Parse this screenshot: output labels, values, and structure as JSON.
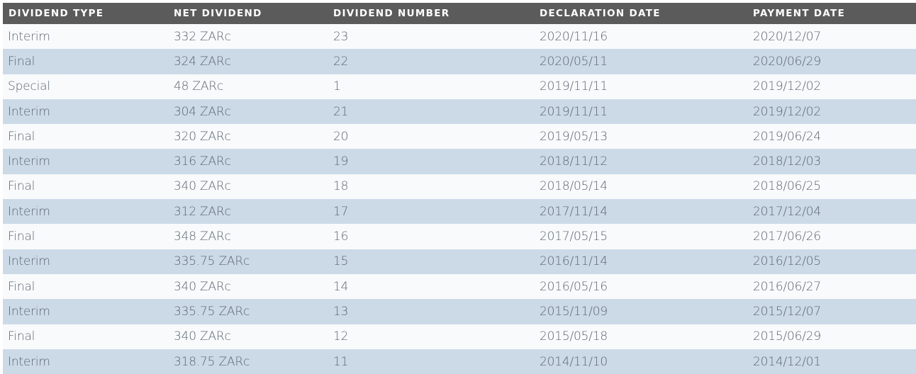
{
  "table": {
    "headers": [
      "DIVIDEND TYPE",
      "NET DIVIDEND",
      "DIVIDEND NUMBER",
      "DECLARATION DATE",
      "PAYMENT DATE"
    ],
    "rows": [
      [
        "Interim",
        "332 ZARc",
        "23",
        "2020/11/16",
        "2020/12/07"
      ],
      [
        "Final",
        "324 ZARc",
        "22",
        "2020/05/11",
        "2020/06/29"
      ],
      [
        "Special",
        "48 ZARc",
        "1",
        "2019/11/11",
        "2019/12/02"
      ],
      [
        "Interim",
        "304 ZARc",
        "21",
        "2019/11/11",
        "2019/12/02"
      ],
      [
        "Final",
        "320 ZARc",
        "20",
        "2019/05/13",
        "2019/06/24"
      ],
      [
        "Interim",
        "316 ZARc",
        "19",
        "2018/11/12",
        "2018/12/03"
      ],
      [
        "Final",
        "340 ZARc",
        "18",
        "2018/05/14",
        "2018/06/25"
      ],
      [
        "Interim",
        "312 ZARc",
        "17",
        "2017/11/14",
        "2017/12/04"
      ],
      [
        "Final",
        "348 ZARc",
        "16",
        "2017/05/15",
        "2017/06/26"
      ],
      [
        "Interim",
        "335.75 ZARc",
        "15",
        "2016/11/14",
        "2016/12/05"
      ],
      [
        "Final",
        "340 ZARc",
        "14",
        "2016/05/16",
        "2016/06/27"
      ],
      [
        "Interim",
        "335.75 ZARc",
        "13",
        "2015/11/09",
        "2015/12/07"
      ],
      [
        "Final",
        "340 ZARc",
        "12",
        "2015/05/18",
        "2015/06/29"
      ],
      [
        "Interim",
        "318.75 ZARc",
        "11",
        "2014/11/10",
        "2014/12/01"
      ]
    ]
  },
  "colors": {
    "header_bg": "#5b5b5b",
    "header_text": "#ffffff",
    "row_light": "#f9fafb",
    "row_blue": "#ccdae8",
    "body_text": "#5a6570"
  }
}
